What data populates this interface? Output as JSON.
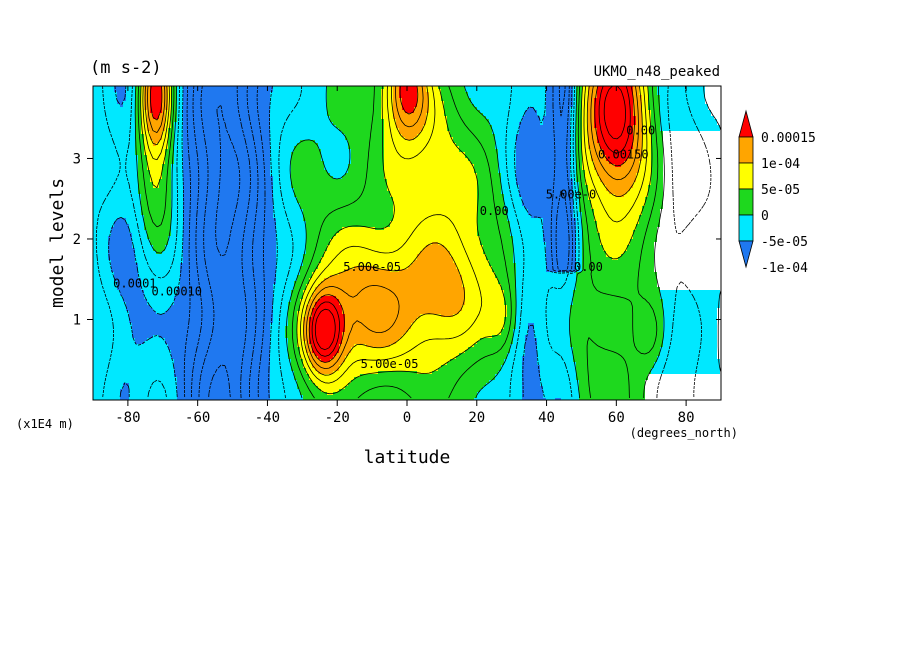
{
  "chart_data": {
    "type": "heatmap",
    "units_label": "(m s-2)",
    "model_name": "UKMO_n48_peaked",
    "xlabel": "latitude",
    "x_units": "(degrees_north)",
    "ylabel": "model levels",
    "y_units": "(x1E4 m)",
    "xlim": [
      -90,
      90
    ],
    "ylim": [
      0,
      3.9
    ],
    "x_ticks": [
      -80,
      -60,
      -40,
      -20,
      0,
      20,
      40,
      60,
      80
    ],
    "x_tick_labels": [
      "-80",
      "-60",
      "-40",
      "-20",
      "0",
      "20",
      "40",
      "60",
      "80"
    ],
    "y_ticks": [
      1,
      2,
      3
    ],
    "y_tick_labels": [
      "1",
      "2",
      "3"
    ],
    "colorbar": {
      "levels": [
        -0.0001,
        -5e-05,
        0,
        5e-05,
        0.0001,
        0.00015
      ],
      "labels": [
        "-1e-04",
        "-5e-05",
        "0",
        "5e-05",
        "1e-04",
        "0.00015"
      ],
      "colors": [
        "#1f78f0",
        "#00e8ff",
        "#1ed81e",
        "#ffff00",
        "#ffa500",
        "#ff0000"
      ],
      "extend": "both"
    },
    "contour_labels": [
      {
        "text": "5.00e-05",
        "x": -10,
        "y": 1.6
      },
      {
        "text": "5.00e-05",
        "x": -5,
        "y": 0.4
      },
      {
        "text": "0.00010",
        "x": -66,
        "y": 1.3
      },
      {
        "text": "0.0001",
        "x": -78,
        "y": 1.4
      },
      {
        "text": "0.00",
        "x": 25,
        "y": 2.3
      },
      {
        "text": "5.00e-0",
        "x": 47,
        "y": 2.5
      },
      {
        "text": "0.00",
        "x": 67,
        "y": 3.3
      },
      {
        "text": "0.00",
        "x": 52,
        "y": 1.6
      },
      {
        "text": "0.00150",
        "x": 62,
        "y": 3.0
      }
    ],
    "features": [
      {
        "x": -72,
        "y": 3.6,
        "v": 0.00016
      },
      {
        "x": -72,
        "y": 2.7,
        "v": 2e-05
      },
      {
        "x": -55,
        "y": 2.0,
        "v": -0.00015
      },
      {
        "x": -25,
        "y": 0.9,
        "v": 0.00017
      },
      {
        "x": -15,
        "y": 1.4,
        "v": 0.0001
      },
      {
        "x": 0,
        "y": 3.7,
        "v": 0.00011
      },
      {
        "x": 60,
        "y": 3.4,
        "v": 0.00018
      },
      {
        "x": 45,
        "y": 3.0,
        "v": -0.00012
      }
    ]
  }
}
